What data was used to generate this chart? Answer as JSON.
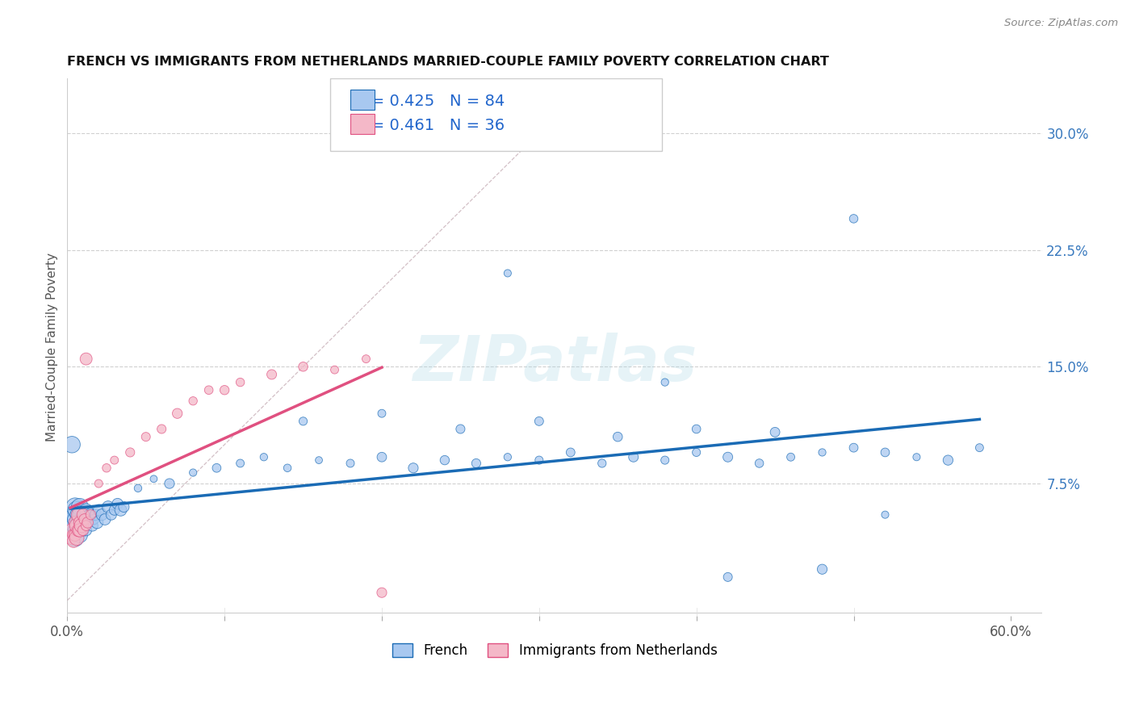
{
  "title": "FRENCH VS IMMIGRANTS FROM NETHERLANDS MARRIED-COUPLE FAMILY POVERTY CORRELATION CHART",
  "source": "Source: ZipAtlas.com",
  "ylabel": "Married-Couple Family Poverty",
  "xlim": [
    0.0,
    0.62
  ],
  "ylim": [
    -0.01,
    0.335
  ],
  "R1": 0.425,
  "N1": 84,
  "R2": 0.461,
  "N2": 36,
  "color_french": "#a8c8f0",
  "color_netherlands": "#f4b8c8",
  "color_french_line": "#1a6bb5",
  "color_netherlands_line": "#e05080",
  "color_diag": "#c8b0b8",
  "watermark": "ZIPatlas",
  "legend_label1": "French",
  "legend_label2": "Immigrants from Netherlands"
}
